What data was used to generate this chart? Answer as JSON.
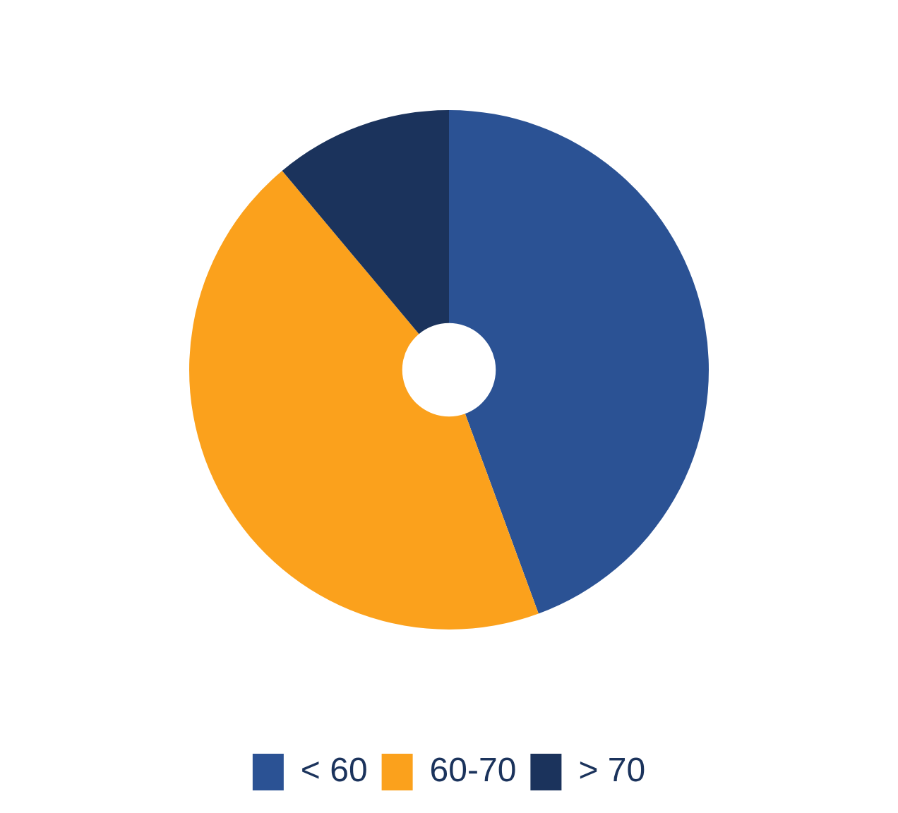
{
  "chart_data": {
    "type": "donut",
    "categories": [
      "< 60",
      "60-70",
      "> 70"
    ],
    "values": [
      44.4,
      44.5,
      11.1
    ],
    "colors": [
      "#2b5294",
      "#fba11c",
      "#1b335c"
    ],
    "legend": "bottom"
  }
}
